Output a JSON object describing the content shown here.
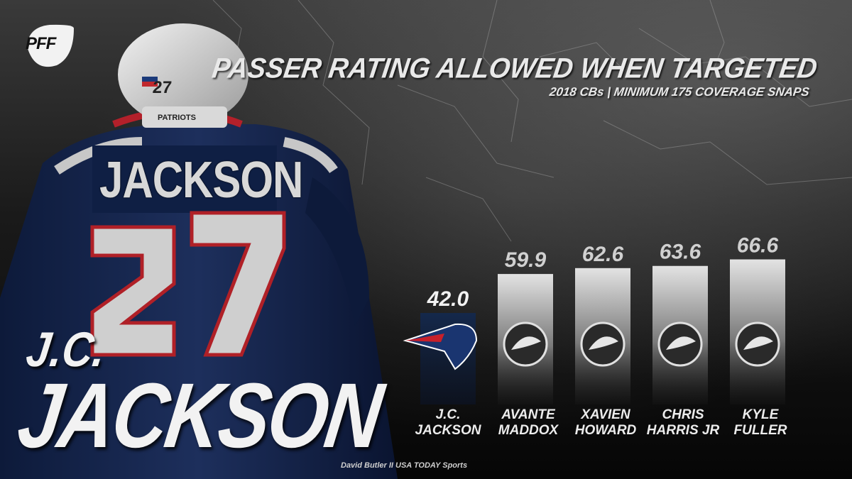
{
  "brand": {
    "logo_text": "PFF"
  },
  "title": "PASSER RATING ALLOWED  WHEN TARGETED",
  "subtitle": "2018 CBs | MINIMUM 175 COVERAGE SNAPS",
  "player": {
    "name_line1": "J.C.",
    "name_line2": "JACKSON",
    "jersey_name": "JACKSON",
    "jersey_number": "27",
    "helmet_number": "27",
    "patch_text": "PATRIOTS"
  },
  "credit": "David Butler II USA TODAY Sports",
  "colors": {
    "highlight_bar": "#14284b",
    "bar_top": "#e6e6e6",
    "text": "#e9e9e9"
  },
  "chart_data": {
    "type": "bar",
    "categories": [
      [
        "J.C.",
        "JACKSON"
      ],
      [
        "AVANTE",
        "MADDOX"
      ],
      [
        "XAVIEN",
        "HOWARD"
      ],
      [
        "CHRIS",
        "HARRIS JR"
      ],
      [
        "KYLE",
        "FULLER"
      ]
    ],
    "values": [
      42.0,
      59.9,
      62.6,
      63.6,
      66.6
    ],
    "value_labels": [
      "42.0",
      "59.9",
      "62.6",
      "63.6",
      "66.6"
    ],
    "team_icons": [
      "patriots-logo-icon",
      "eagles-logo-icon",
      "dolphins-logo-icon",
      "broncos-logo-icon",
      "bears-logo-icon"
    ],
    "highlight_index": 0,
    "title": "PASSER RATING ALLOWED  WHEN TARGETED",
    "xlabel": "",
    "ylabel": "",
    "grid": false,
    "legend": "none"
  }
}
